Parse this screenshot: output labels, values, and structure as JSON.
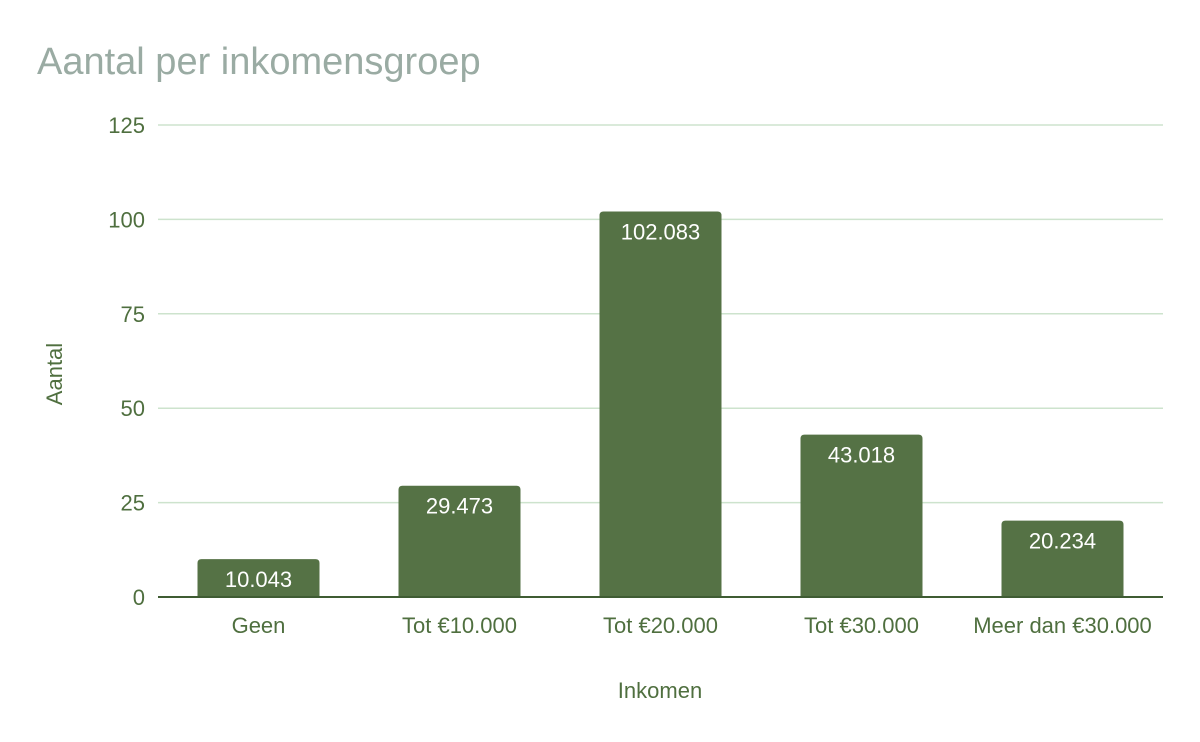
{
  "chart_data": {
    "type": "bar",
    "title": "Aantal per inkomensgroep",
    "xlabel": "Inkomen",
    "ylabel": "Aantal",
    "categories": [
      "Geen",
      "Tot €10.000",
      "Tot €20.000",
      "Tot €30.000",
      "Meer dan €30.000"
    ],
    "values": [
      10.043,
      29.473,
      102.083,
      43.018,
      20.234
    ],
    "value_labels": [
      "10.043",
      "29.473",
      "102.083",
      "43.018",
      "20.234"
    ],
    "yticks": [
      0,
      25,
      50,
      75,
      100,
      125
    ],
    "ylim": [
      0,
      125
    ],
    "grid": true,
    "legend": "none",
    "colors": {
      "bar": "#557245",
      "grid": "#cde3cd",
      "axis_text": "#4f6f3f",
      "title": "#9aaba3",
      "data_label": "#ffffff"
    }
  }
}
